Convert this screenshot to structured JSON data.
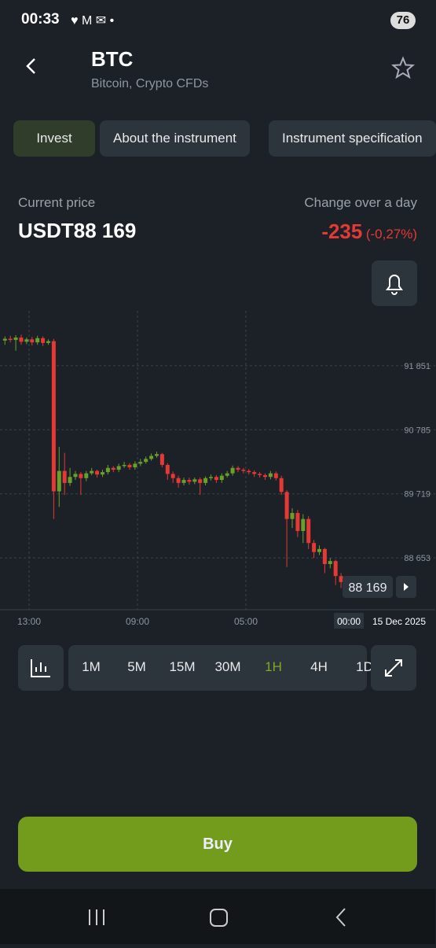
{
  "status": {
    "time": "00:33",
    "battery": "76"
  },
  "header": {
    "title": "BTC",
    "subtitle": "Bitcoin, Crypto CFDs"
  },
  "tabs": [
    "Invest",
    "About the instrument",
    "Instrument specification"
  ],
  "price": {
    "label": "Current price",
    "value": "USDT88 169",
    "change_label": "Change over a day",
    "change": "-235",
    "change_pct": "(-0,27%)"
  },
  "chart_data": {
    "type": "candlestick",
    "ylim": [
      87790,
      92766
    ],
    "yticks": [
      {
        "value": 88653,
        "label": "88 653"
      },
      {
        "value": 89719,
        "label": "89 719"
      },
      {
        "value": 90785,
        "label": "90 785"
      },
      {
        "value": 91851,
        "label": "91 851"
      }
    ],
    "xlim": [
      -0.91,
      71.55
    ],
    "xticks": [
      {
        "value": 4.45,
        "label": "13:00"
      },
      {
        "value": 24.45,
        "label": "09:00"
      },
      {
        "value": 44.45,
        "label": "05:00"
      },
      {
        "value": 63.45,
        "label": "00:00"
      }
    ],
    "date_label": "15 Dec 2025",
    "current_price": {
      "value": 88169,
      "label": "88 169"
    },
    "up_color": "#6a9f2c",
    "down_color": "#e53935",
    "open": [
      92270,
      92300,
      92280,
      92320,
      92250,
      92290,
      92240,
      92310,
      92230,
      92260,
      89760,
      90100,
      89900,
      90000,
      90050,
      89980,
      90060,
      90100,
      90040,
      90080,
      90150,
      90120,
      90180,
      90200,
      90160,
      90220,
      90250,
      90300,
      90350,
      90380,
      90200,
      90050,
      89980,
      89900,
      89950,
      89920,
      89960,
      89900,
      89980,
      90000,
      89950,
      90020,
      90060,
      90150,
      90120,
      90100,
      90080,
      90050,
      90030,
      90000,
      90060,
      89980,
      89750,
      89300,
      89400,
      89100,
      89300,
      88900,
      88750,
      88800,
      88550,
      88600,
      88350,
      88250
    ],
    "high": [
      92340,
      92350,
      92360,
      92370,
      92320,
      92330,
      92350,
      92340,
      92290,
      92300,
      90500,
      90400,
      90150,
      90100,
      90080,
      90100,
      90150,
      90120,
      90120,
      90200,
      90180,
      90220,
      90250,
      90230,
      90260,
      90300,
      90340,
      90390,
      90420,
      90400,
      90230,
      90090,
      90020,
      89990,
      89990,
      89990,
      89990,
      90010,
      90040,
      90030,
      90060,
      90100,
      90190,
      90180,
      90150,
      90130,
      90110,
      90080,
      90060,
      90100,
      90090,
      90020,
      89780,
      89480,
      89450,
      89380,
      89350,
      88950,
      88860,
      88820,
      88650,
      88620,
      88400,
      88290
    ],
    "low": [
      92200,
      92240,
      92100,
      92200,
      92210,
      92190,
      92200,
      92180,
      92200,
      89300,
      89500,
      89700,
      89850,
      89950,
      89700,
      89930,
      90030,
      89990,
      90000,
      90040,
      90080,
      90080,
      90150,
      90120,
      90120,
      90180,
      90220,
      90270,
      90320,
      90160,
      89950,
      89900,
      89820,
      89860,
      89870,
      89880,
      89700,
      89860,
      89940,
      89900,
      89900,
      89990,
      90020,
      90080,
      90060,
      90040,
      90000,
      89990,
      89950,
      89960,
      89940,
      89700,
      88500,
      89150,
      89000,
      88900,
      88800,
      88650,
      88700,
      88400,
      88480,
      88200,
      88150,
      88120
    ],
    "close": [
      92300,
      92280,
      92320,
      92250,
      92290,
      92240,
      92310,
      92230,
      92260,
      89760,
      90100,
      89900,
      90000,
      90050,
      89980,
      90060,
      90100,
      90040,
      90080,
      90150,
      90120,
      90180,
      90200,
      90160,
      90220,
      90250,
      90300,
      90350,
      90380,
      90200,
      90050,
      89980,
      89900,
      89950,
      89920,
      89960,
      89900,
      89980,
      90000,
      89950,
      90020,
      90060,
      90150,
      90120,
      90100,
      90080,
      90050,
      90030,
      90000,
      90060,
      89980,
      89750,
      89300,
      89400,
      89100,
      89300,
      88900,
      88750,
      88800,
      88550,
      88600,
      88350,
      88250,
      88169
    ]
  },
  "timeframes": [
    "1M",
    "5M",
    "15M",
    "30M",
    "1H",
    "4H",
    "1D"
  ],
  "active_timeframe": 4,
  "buy_button": "Buy"
}
